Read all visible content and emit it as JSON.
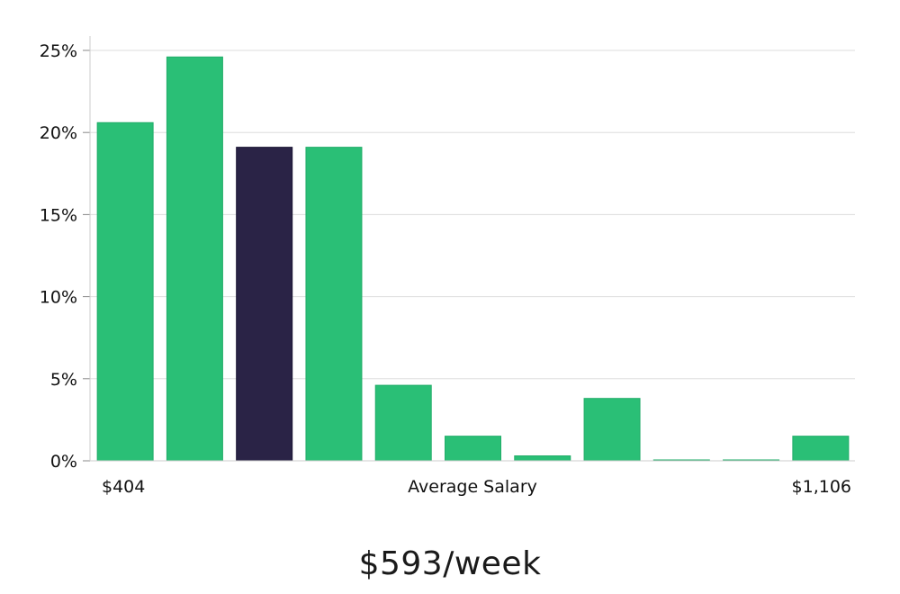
{
  "chart_data": {
    "type": "bar",
    "xlabel": "Average Salary",
    "x_range_labels": {
      "min": "$404",
      "max": "$1,106"
    },
    "y_ticks": [
      "0%",
      "5%",
      "10%",
      "15%",
      "20%",
      "25%"
    ],
    "ylim": [
      0,
      26
    ],
    "values": [
      20.6,
      24.6,
      19.1,
      19.1,
      4.6,
      1.5,
      0.3,
      3.8,
      0.05,
      0.05,
      1.5
    ],
    "highlight_index": 2,
    "grid": true,
    "colors": {
      "bar": "#2abf76",
      "highlight": "#2a2346",
      "grid": "#dddddd",
      "axis": "#cccccc"
    }
  },
  "footer": {
    "salary": "$593/week"
  }
}
